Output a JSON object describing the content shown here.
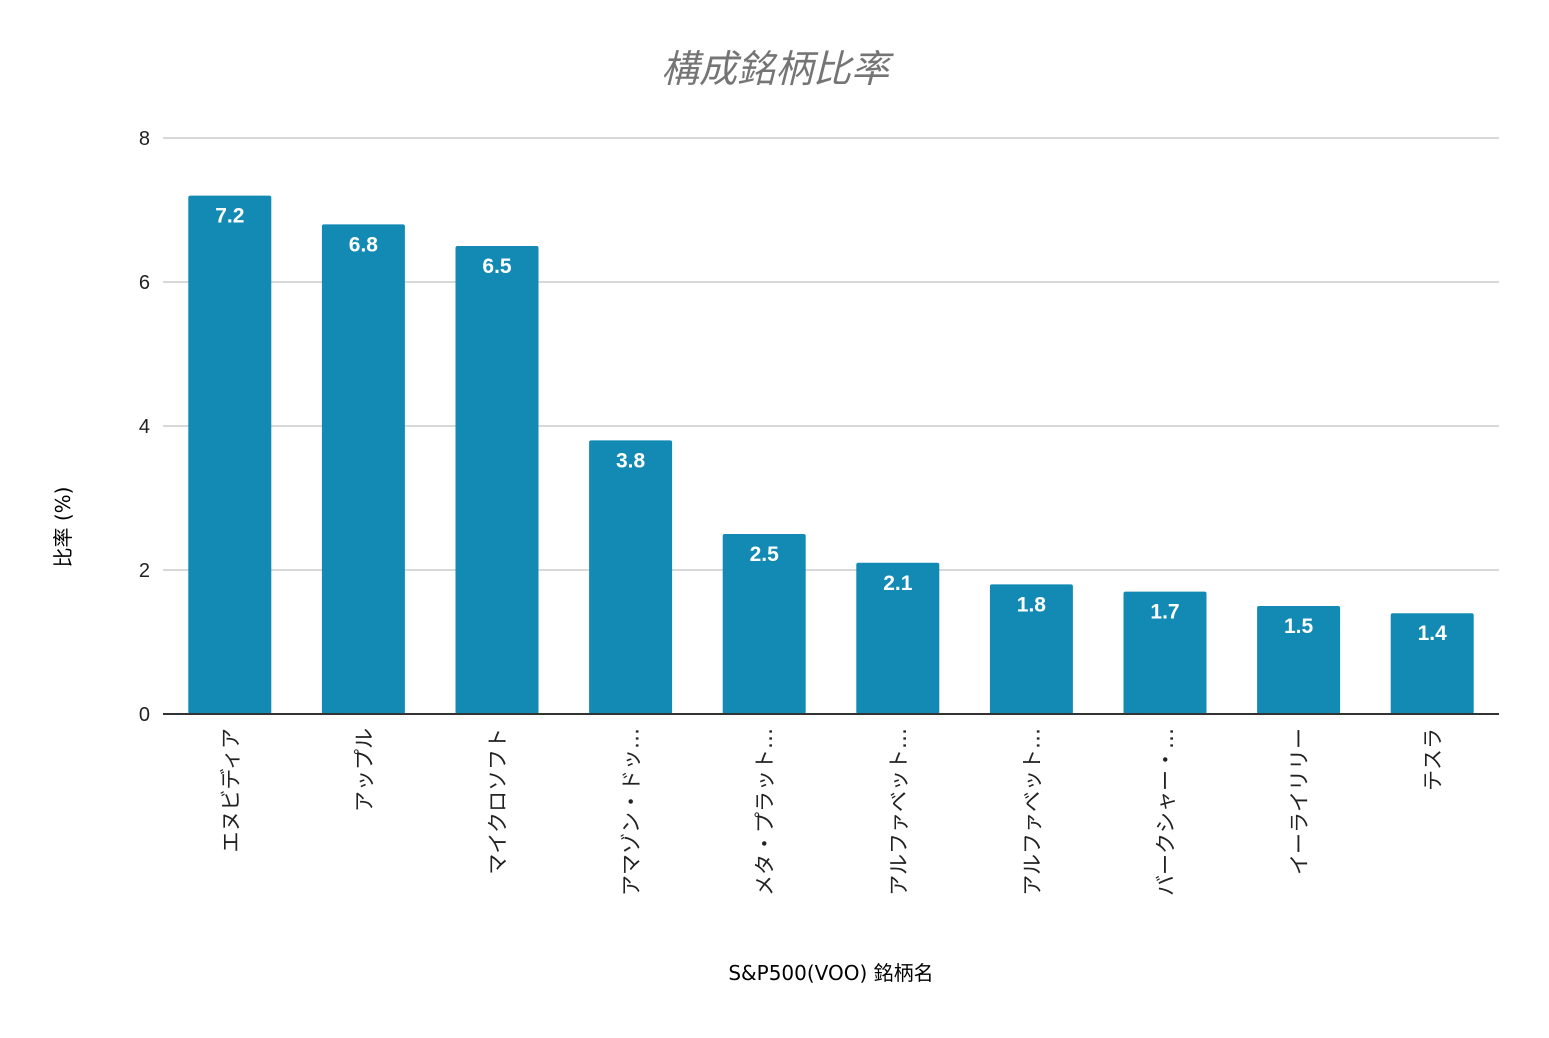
{
  "chart_data": {
    "type": "bar",
    "title": "構成銘柄比率",
    "xlabel": "S&P500(VOO) 銘柄名",
    "ylabel": "比率 (%)",
    "ylim": [
      0,
      8
    ],
    "yticks": [
      0,
      2,
      4,
      6,
      8
    ],
    "grid": true,
    "categories": [
      "エヌビディア",
      "アップル",
      "マイクロソフト",
      "アマゾン・ドッ…",
      "メタ・プラット…",
      "アルファベット…",
      "アルファベット…",
      "バークシャー・…",
      "イーライリリー",
      "テスラ"
    ],
    "values": [
      7.2,
      6.8,
      6.5,
      3.8,
      2.5,
      2.1,
      1.8,
      1.7,
      1.5,
      1.4
    ],
    "data_labels": [
      "7.2",
      "6.8",
      "6.5",
      "3.8",
      "2.5",
      "2.1",
      "1.8",
      "1.7",
      "1.5",
      "1.4"
    ],
    "bar_color": "#128ab4",
    "gridline_color": "#cccccc",
    "axis_color": "#333333",
    "title_color": "#757575"
  }
}
